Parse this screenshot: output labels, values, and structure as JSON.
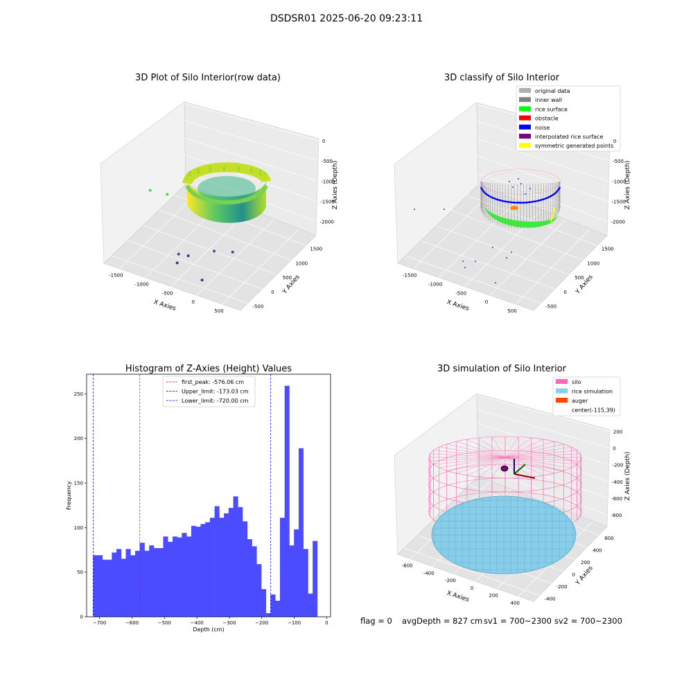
{
  "figure_title": "DSDSR01 2025-06-20 09:23:11",
  "status_line": {
    "flag": "flag = 0",
    "avg_depth": "avgDepth = 827 cm",
    "sv1": "sv1 = 700~2300",
    "sv2": "sv2 = 700~2300"
  },
  "colors": {
    "histogram_bar": "#4b4bff",
    "first_peak_line": "#ff0000",
    "limit_line": "#0000ff",
    "raw_low": "#21918c",
    "raw_high": "#fde725",
    "outlier": "#46337e",
    "original_data": "#b0b0b0",
    "inner_wall": "#808080",
    "rice_surface": "#00ff00",
    "obstacle": "#ff0000",
    "noise": "#0000ff",
    "interpolated": "#800080",
    "symmetric": "#ffff00",
    "silo": "#ff69b4",
    "rice_sim": "#87ceeb",
    "auger": "#ff4500"
  },
  "chart_data": [
    {
      "type": "scatter",
      "projection": "3d",
      "title": "3D Plot of Silo Interior(row data)",
      "xlabel": "X Axies",
      "ylabel": "Y Axies",
      "zlabel": "Z Axies (Depth)",
      "x_ticks": [
        "-1500",
        "-1000",
        "-500",
        "0",
        "500"
      ],
      "y_ticks": [
        "-500",
        "0",
        "500",
        "1000",
        "1500"
      ],
      "z_ticks": [
        "0",
        "-500",
        "-1000",
        "-1500",
        "-2000"
      ],
      "xlim": [
        -1800,
        600
      ],
      "ylim": [
        -600,
        1700
      ],
      "zlim": [
        -2300,
        0
      ],
      "series": [
        {
          "cylinder_center": [
            -115,
            39
          ],
          "cylinder_radius": 560,
          "z_range": [
            -1450,
            -900
          ]
        }
      ],
      "outlier_points": [
        {
          "x": -1550,
          "y": 300,
          "z": -1100
        },
        {
          "x": -1250,
          "y": 300,
          "z": -1050
        },
        {
          "x": -600,
          "y": -150,
          "z": -1900
        },
        {
          "x": -300,
          "y": 100,
          "z": -1850
        },
        {
          "x": -700,
          "y": -300,
          "z": -2000
        },
        {
          "x": -800,
          "y": -100,
          "z": -2000
        },
        {
          "x": -200,
          "y": -400,
          "z": -2100
        },
        {
          "x": -100,
          "y": 300,
          "z": -1950
        }
      ]
    },
    {
      "type": "scatter",
      "projection": "3d",
      "title": "3D classify of Silo Interior",
      "xlabel": "X Axies",
      "ylabel": "Y Axies",
      "zlabel": "Z Axies (Depth)",
      "x_ticks": [
        "-1500",
        "-1000",
        "-500",
        "0",
        "500"
      ],
      "y_ticks": [
        "-500",
        "0",
        "500",
        "1000",
        "1500"
      ],
      "z_ticks": [
        "0",
        "-500",
        "-1000",
        "-1500",
        "-2000"
      ],
      "legend": [
        "original data",
        "inner wall",
        "rice surface",
        "obstacle",
        "noise",
        "interpolated rice surface",
        "symmetric generated points"
      ],
      "legend_location": "upper right"
    },
    {
      "type": "bar",
      "title": "Histogram of Z-Axies (Height) Values",
      "xlabel": "Depth (cm)",
      "ylabel": "Frequency",
      "xlim": [
        -740,
        12
      ],
      "ylim": [
        0,
        272
      ],
      "x_ticks": [
        -700,
        -600,
        -500,
        -400,
        -300,
        -200,
        -100,
        0
      ],
      "y_ticks": [
        0,
        50,
        100,
        150,
        200,
        250
      ],
      "bin_start": -720,
      "bin_width": 14.4,
      "values": [
        69,
        69,
        64,
        64,
        72,
        76,
        65,
        76,
        69,
        74,
        83,
        74,
        80,
        77,
        77,
        90,
        84,
        90,
        89,
        94,
        90,
        102,
        101,
        104,
        106,
        111,
        124,
        111,
        116,
        122,
        135,
        123,
        107,
        87,
        79,
        59,
        31,
        4,
        25,
        18,
        111,
        259,
        80,
        98,
        189,
        76,
        26,
        85
      ],
      "vlines": [
        {
          "label": "first_peak: -576.06 cm",
          "x": -576.06,
          "color": "red"
        },
        {
          "label": "Upper_limit: -173.03 cm",
          "x": -173.03,
          "color": "blue"
        },
        {
          "label": "Lower_limit: -720.00 cm",
          "x": -720.0,
          "color": "blue"
        }
      ],
      "legend_location": "upper center"
    },
    {
      "type": "scatter",
      "projection": "3d",
      "title": "3D simulation of Silo Interior",
      "xlabel": "X Axies",
      "ylabel": "Y Axies",
      "zlabel": "Z Axies (Depth)",
      "x_ticks": [
        "-600",
        "-400",
        "-200",
        "0",
        "200",
        "400"
      ],
      "y_ticks": [
        "-400",
        "-200",
        "0",
        "200",
        "400",
        "600"
      ],
      "z_ticks": [
        "200",
        "0",
        "-200",
        "-400",
        "-600",
        "-800"
      ],
      "legend": [
        "silo",
        "rice simulation",
        "auger",
        "center(-115,39)"
      ],
      "legend_location": "upper right"
    }
  ]
}
